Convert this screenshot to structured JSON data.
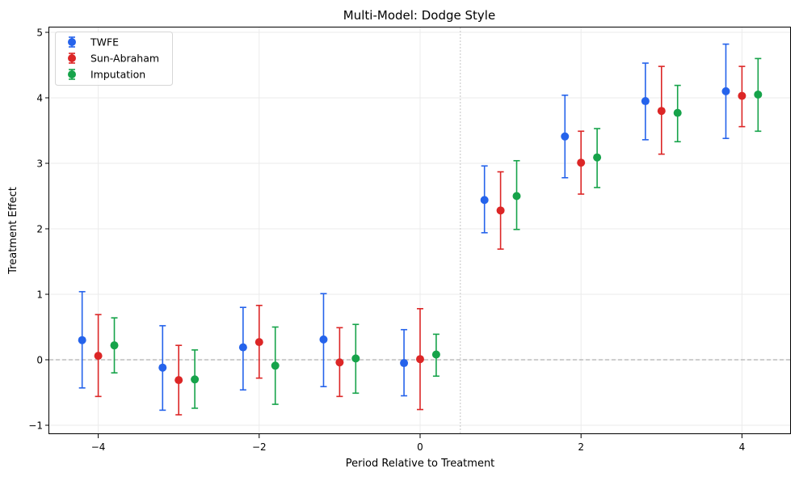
{
  "chart_data": {
    "type": "scatter",
    "title": "Multi-Model: Dodge Style",
    "xlabel": "Period Relative to Treatment",
    "ylabel": "Treatment Effect",
    "xlim": [
      -4.6,
      4.6
    ],
    "ylim": [
      -1.1,
      5.05
    ],
    "xticks": [
      -4,
      -2,
      0,
      2,
      4
    ],
    "xtick_labels": [
      "−4",
      "−2",
      "0",
      "2",
      "4"
    ],
    "yticks": [
      -1,
      0,
      1,
      2,
      3,
      4,
      5
    ],
    "ytick_labels": [
      "−1",
      "0",
      "1",
      "2",
      "3",
      "4",
      "5"
    ],
    "grid": true,
    "reference_lines": {
      "horizontal_y": 0,
      "vertical_x": 0.5
    },
    "legend_position": "top-left",
    "x": [
      -4,
      -3,
      -2,
      -1,
      0,
      1,
      2,
      3,
      4
    ],
    "series": [
      {
        "name": "TWFE",
        "color": "#2563eb",
        "offset": -0.2,
        "values": [
          0.3,
          -0.12,
          0.19,
          0.31,
          -0.05,
          2.44,
          3.41,
          3.95,
          4.1
        ],
        "ci_low": [
          -0.43,
          -0.77,
          -0.46,
          -0.41,
          -0.55,
          1.94,
          2.78,
          3.36,
          3.38
        ],
        "ci_high": [
          1.04,
          0.52,
          0.8,
          1.01,
          0.46,
          2.96,
          4.04,
          4.53,
          4.82
        ]
      },
      {
        "name": "Sun-Abraham",
        "color": "#dc2626",
        "offset": 0.0,
        "values": [
          0.06,
          -0.31,
          0.27,
          -0.04,
          0.01,
          2.28,
          3.01,
          3.8,
          4.03
        ],
        "ci_low": [
          -0.56,
          -0.84,
          -0.28,
          -0.56,
          -0.76,
          1.69,
          2.53,
          3.14,
          3.56
        ],
        "ci_high": [
          0.69,
          0.22,
          0.83,
          0.49,
          0.78,
          2.87,
          3.49,
          4.48,
          4.48
        ]
      },
      {
        "name": "Imputation",
        "color": "#16a34a",
        "offset": 0.2,
        "values": [
          0.22,
          -0.3,
          -0.09,
          0.02,
          0.08,
          2.5,
          3.09,
          3.77,
          4.05
        ],
        "ci_low": [
          -0.2,
          -0.74,
          -0.68,
          -0.51,
          -0.25,
          1.99,
          2.63,
          3.33,
          3.49
        ],
        "ci_high": [
          0.64,
          0.15,
          0.5,
          0.54,
          0.39,
          3.04,
          3.53,
          4.19,
          4.6
        ]
      }
    ]
  }
}
